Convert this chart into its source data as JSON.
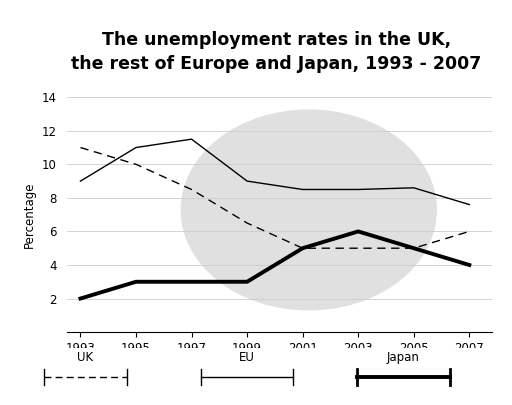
{
  "title": "The unemployment rates in the UK,\nthe rest of Europe and Japan, 1993 - 2007",
  "years": [
    1993,
    1995,
    1997,
    1999,
    2001,
    2003,
    2005,
    2007
  ],
  "uk": [
    11.0,
    10.0,
    8.5,
    6.5,
    5.0,
    5.0,
    5.0,
    6.0
  ],
  "eu": [
    9.0,
    11.0,
    11.5,
    9.0,
    8.5,
    8.5,
    8.6,
    7.6
  ],
  "japan": [
    2.0,
    3.0,
    3.0,
    3.0,
    5.0,
    6.0,
    5.0,
    4.0
  ],
  "ylabel": "Percentage",
  "ylim": [
    0,
    14
  ],
  "yticks": [
    0,
    2,
    4,
    6,
    8,
    10,
    12,
    14
  ],
  "bg_circle_color": "#e0e0e0",
  "title_fontsize": 12.5,
  "title_fontweight": "bold"
}
